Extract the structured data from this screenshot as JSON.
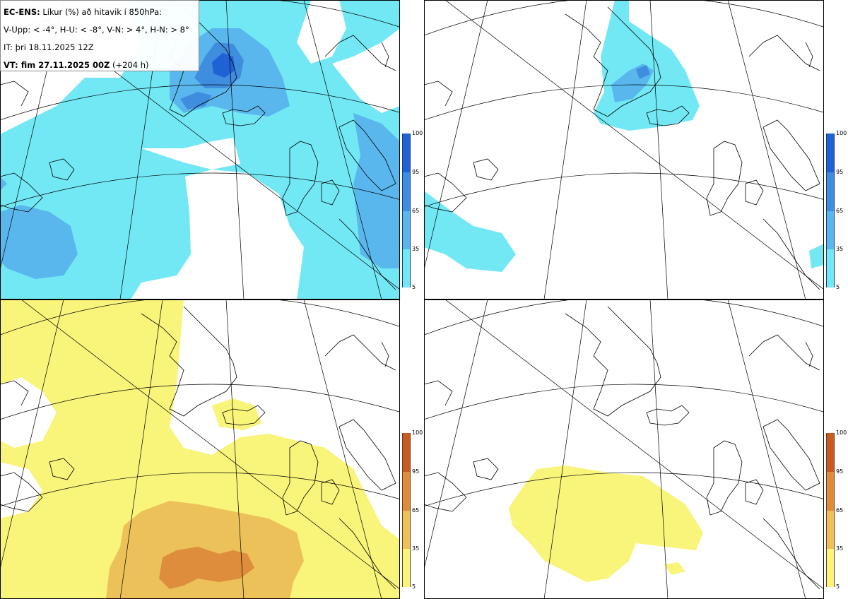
{
  "header": {
    "line1_bold": "EC-ENS:",
    "line1_rest": " Líkur (%) að hitavik í 850hPa:",
    "line2": "V-Upp: < -4°, H-U: < -8°, V-N: > 4°, H-N: > 8°",
    "line3": "IT: þri 18.11.2025 12Z",
    "line4_bold": "VT: fim 27.11.2025 00Z",
    "line4_rest": " (+204 h)"
  },
  "colorbar": {
    "ticks": [
      "100",
      "95",
      "65",
      "35",
      "5"
    ],
    "cold_colors": [
      "#1f62d6",
      "#3f8ddf",
      "#5ab7ed",
      "#72e8f5"
    ],
    "warm_colors": [
      "#c85b21",
      "#dd8d3c",
      "#ecc159",
      "#f9f47a"
    ]
  },
  "panels": [
    {
      "id": "upper-left",
      "type": "cold",
      "threshold": "< -4°"
    },
    {
      "id": "upper-right",
      "type": "cold",
      "threshold": "< -8°"
    },
    {
      "id": "lower-left",
      "type": "warm",
      "threshold": "> 4°"
    },
    {
      "id": "lower-right",
      "type": "warm",
      "threshold": "> 8°"
    }
  ]
}
